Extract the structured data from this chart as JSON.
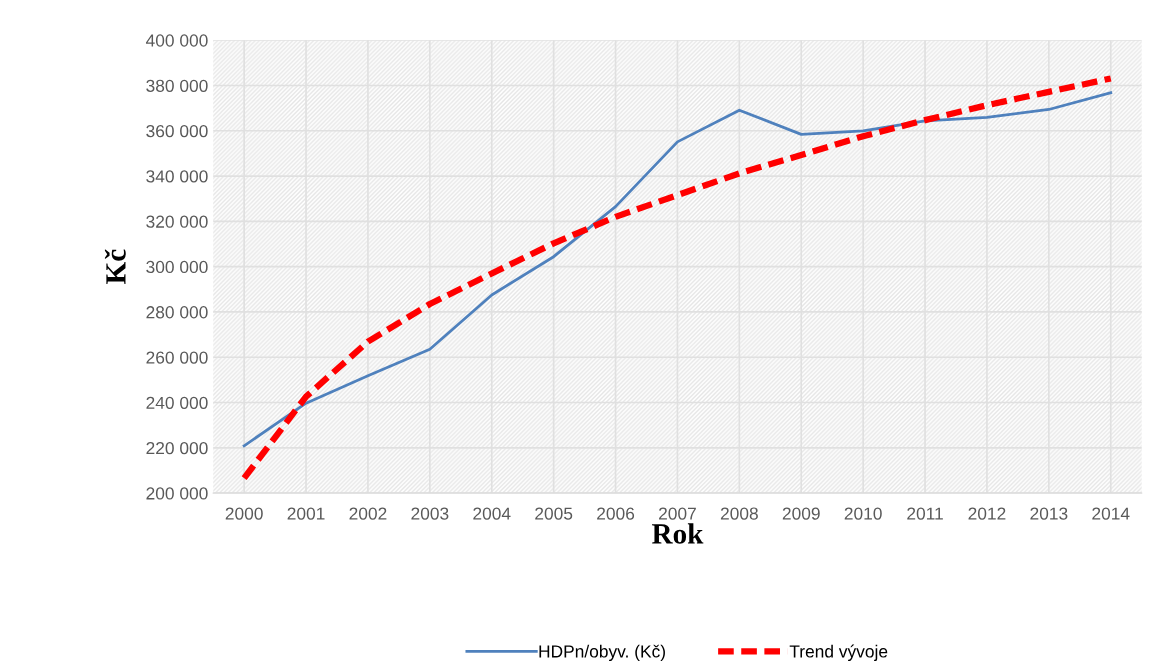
{
  "chart_data": {
    "type": "line",
    "xlabel": "Rok",
    "ylabel": "Kč",
    "categories": [
      "2000",
      "2001",
      "2002",
      "2003",
      "2004",
      "2005",
      "2006",
      "2007",
      "2008",
      "2009",
      "2010",
      "2011",
      "2012",
      "2013",
      "2014"
    ],
    "series": [
      {
        "name": "HDPn/obyv. (Kč)",
        "color": "#4f81bd",
        "line_style": "solid",
        "values": [
          220900,
          239700,
          251800,
          263500,
          287500,
          304400,
          326500,
          355100,
          369100,
          358400,
          360000,
          364400,
          365900,
          369400,
          376800
        ]
      },
      {
        "name": "Trend vývoje",
        "color": "#ff0000",
        "line_style": "dashed",
        "values": [
          206600,
          242600,
          266900,
          283500,
          297000,
          310300,
          322000,
          331600,
          341200,
          349300,
          357600,
          364700,
          371300,
          377200,
          383100
        ]
      }
    ],
    "ylim": [
      200000,
      400000
    ],
    "yticks": [
      {
        "value": 200000,
        "label": "200 000"
      },
      {
        "value": 220000,
        "label": "220 000"
      },
      {
        "value": 240000,
        "label": "240 000"
      },
      {
        "value": 260000,
        "label": "260 000"
      },
      {
        "value": 280000,
        "label": "280 000"
      },
      {
        "value": 300000,
        "label": "300 000"
      },
      {
        "value": 320000,
        "label": "320 000"
      },
      {
        "value": 340000,
        "label": "340 000"
      },
      {
        "value": 360000,
        "label": "360 000"
      },
      {
        "value": 380000,
        "label": "380 000"
      },
      {
        "value": 400000,
        "label": "400 000"
      }
    ],
    "grid": true,
    "legend": "bottom",
    "marker": "none"
  }
}
